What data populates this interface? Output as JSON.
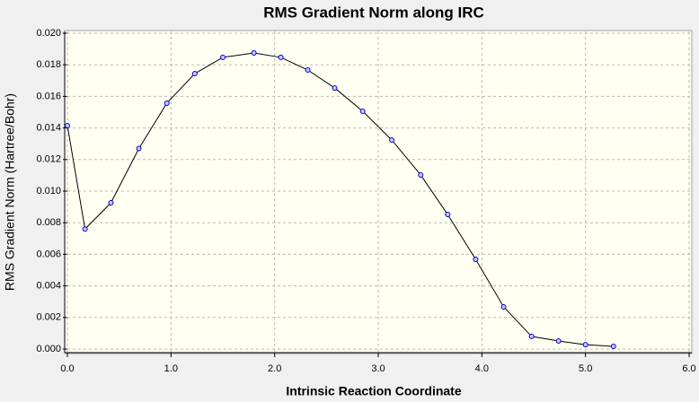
{
  "chart_data": {
    "type": "line",
    "title": "RMS Gradient Norm along IRC",
    "x_label": "Intrinsic Reaction Coordinate",
    "y_label": "RMS Gradient Norm (Hartree/Bohr)",
    "x": [
      0.0,
      0.17,
      0.42,
      0.69,
      0.96,
      1.23,
      1.5,
      1.8,
      2.06,
      2.32,
      2.58,
      2.85,
      3.13,
      3.41,
      3.67,
      3.94,
      4.21,
      4.48,
      4.74,
      5.0,
      5.27
    ],
    "series": [
      {
        "name": "RMS Gradient Norm",
        "color": "#0000cc",
        "values": [
          0.01415,
          0.0076,
          0.00926,
          0.0127,
          0.01557,
          0.01744,
          0.01847,
          0.01875,
          0.01847,
          0.01767,
          0.01653,
          0.01506,
          0.01324,
          0.01102,
          0.00852,
          0.00568,
          0.00267,
          0.0008,
          0.00051,
          0.00028,
          0.00017
        ]
      }
    ],
    "xlim": [
      0,
      6
    ],
    "ylim": [
      0,
      0.02
    ],
    "xticks": [
      {
        "value": 0,
        "label": "0.0"
      },
      {
        "value": 1,
        "label": "1.0"
      },
      {
        "value": 2,
        "label": "2.0"
      },
      {
        "value": 3,
        "label": "3.0"
      },
      {
        "value": 4,
        "label": "4.0"
      },
      {
        "value": 5,
        "label": "5.0"
      },
      {
        "value": 6,
        "label": "6.0"
      }
    ],
    "yticks": [
      {
        "value": 0,
        "label": "0.000"
      },
      {
        "value": 0.002,
        "label": "0.002"
      },
      {
        "value": 0.004,
        "label": "0.004"
      },
      {
        "value": 0.006,
        "label": "0.006"
      },
      {
        "value": 0.008,
        "label": "0.008"
      },
      {
        "value": 0.01,
        "label": "0.010"
      },
      {
        "value": 0.012,
        "label": "0.012"
      },
      {
        "value": 0.014,
        "label": "0.014"
      },
      {
        "value": 0.016,
        "label": "0.016"
      },
      {
        "value": 0.018,
        "label": "0.018"
      },
      {
        "value": 0.02,
        "label": "0.020"
      }
    ],
    "grid": true
  }
}
